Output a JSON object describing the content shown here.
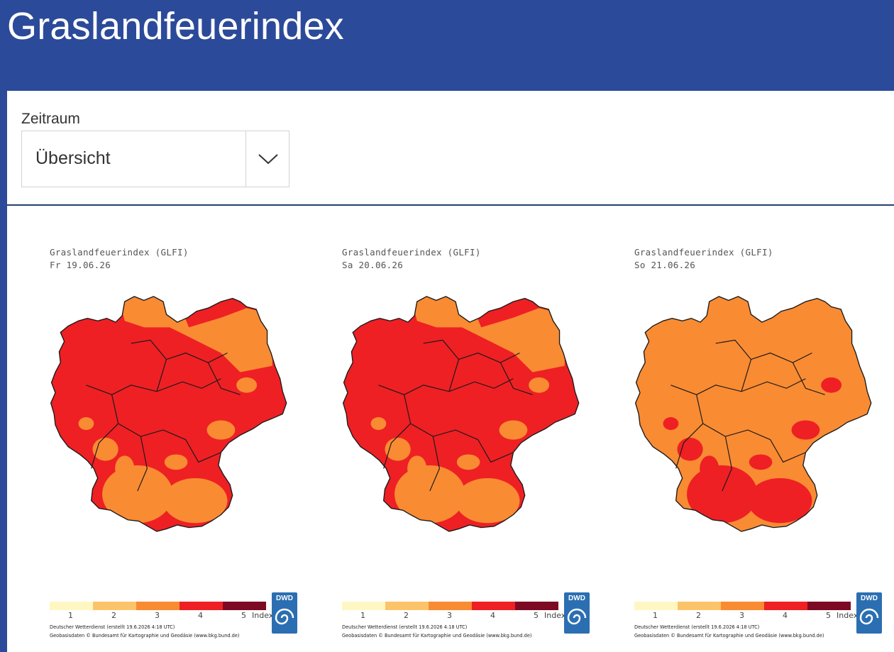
{
  "header": {
    "title": "Graslandfeuerindex"
  },
  "filter": {
    "label": "Zeitraum",
    "selected": "Übersicht"
  },
  "maps": [
    {
      "title": "Graslandfeuerindex (GLFI)",
      "date": "Fr 19.06.26",
      "dominant": "#ee2024",
      "secondary": "#f98b33",
      "north": "#f98b33"
    },
    {
      "title": "Graslandfeuerindex (GLFI)",
      "date": "Sa 20.06.26",
      "dominant": "#ee2024",
      "secondary": "#f98b33",
      "north": "#f98b33"
    },
    {
      "title": "Graslandfeuerindex (GLFI)",
      "date": "So 21.06.26",
      "dominant": "#f98b33",
      "secondary": "#ee2024",
      "north": "#f98b33"
    }
  ],
  "legend": {
    "labels": [
      "1",
      "2",
      "3",
      "4",
      "5",
      "Index"
    ],
    "colors": [
      "#fff7c3",
      "#fcc46a",
      "#f98b33",
      "#ee2024",
      "#7d0a24"
    ]
  },
  "footer": {
    "line1": "Deutscher Wetterdienst (erstellt 19.6.2026 4:18 UTC)",
    "line2": "Geobasisdaten © Bundesamt für Kartographie und Geodäsie (www.bkg.bund.de)"
  },
  "logo": {
    "text": "DWD"
  }
}
